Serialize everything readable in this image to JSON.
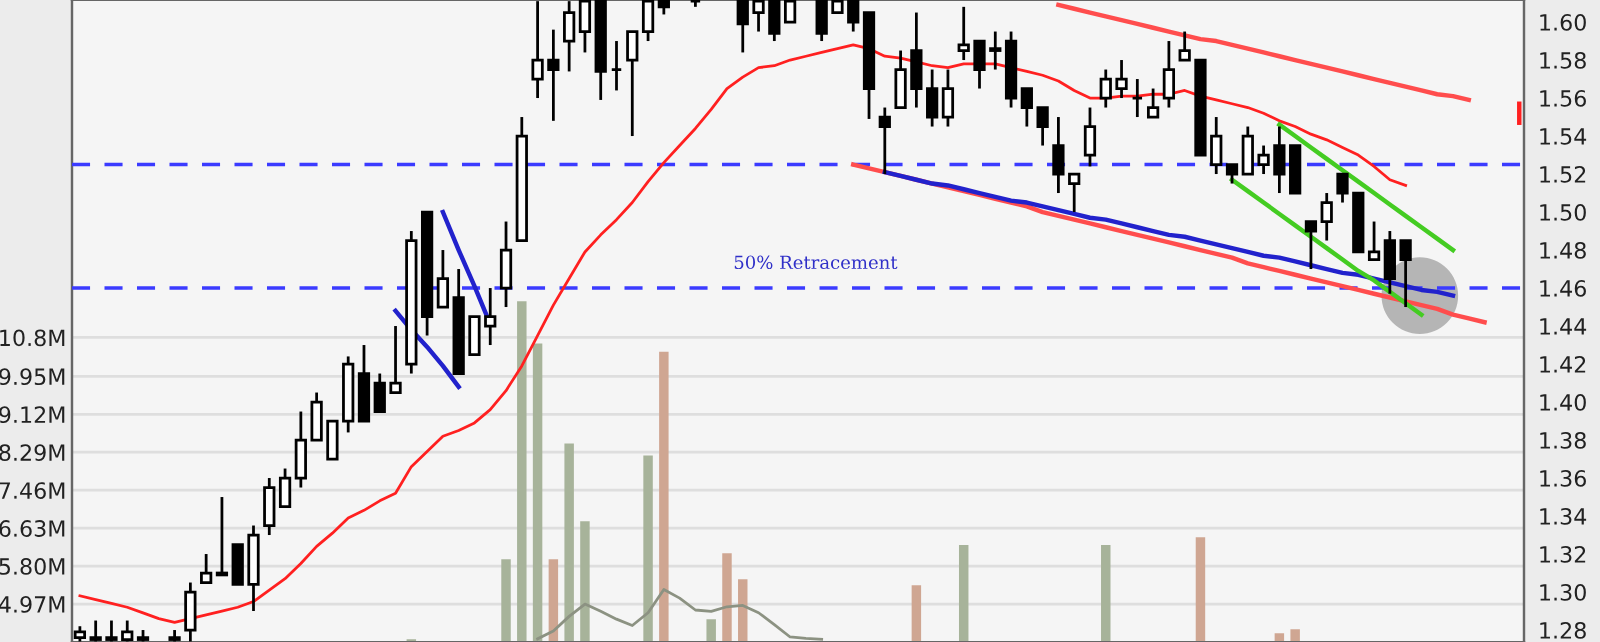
{
  "chart_data": {
    "type": "candlestick",
    "categories": [
      null,
      null,
      null,
      null,
      null,
      null,
      null,
      null,
      null,
      null,
      null,
      null,
      null,
      null,
      null,
      null,
      null,
      null,
      null,
      null,
      null,
      null,
      null,
      null,
      null,
      null,
      null,
      null,
      null,
      null,
      null,
      null,
      null,
      null,
      null,
      null,
      null,
      null,
      null,
      null,
      null,
      null,
      null,
      null,
      null,
      null,
      null,
      null,
      null,
      null,
      null,
      null,
      null,
      null,
      null,
      null,
      null,
      null,
      null,
      null,
      null,
      null,
      null,
      null,
      null,
      null,
      null,
      null,
      null,
      null,
      null,
      null,
      null,
      null,
      null,
      null,
      null,
      null,
      null,
      null,
      null,
      null,
      null,
      null,
      null,
      null,
      null,
      null,
      null,
      null,
      null,
      null
    ],
    "ohlc": [
      [
        1.276,
        1.282,
        1.274,
        1.279
      ],
      [
        1.275,
        1.285,
        1.274,
        1.276
      ],
      [
        1.275,
        1.285,
        1.274,
        1.276
      ],
      [
        1.275,
        1.285,
        1.274,
        1.279
      ],
      [
        1.275,
        1.28,
        1.274,
        1.276
      ],
      null,
      [
        1.275,
        1.28,
        1.274,
        1.276
      ],
      [
        1.28,
        1.305,
        1.274,
        1.3
      ],
      [
        1.305,
        1.32,
        1.305,
        1.31
      ],
      [
        1.309,
        1.35,
        1.309,
        1.31
      ],
      [
        1.325,
        1.325,
        1.304,
        1.304
      ],
      [
        1.304,
        1.335,
        1.29,
        1.33
      ],
      [
        1.335,
        1.36,
        1.33,
        1.355
      ],
      [
        1.345,
        1.365,
        1.345,
        1.36
      ],
      [
        1.36,
        1.395,
        1.355,
        1.38
      ],
      [
        1.38,
        1.405,
        1.38,
        1.4
      ],
      [
        1.37,
        1.39,
        1.37,
        1.39
      ],
      [
        1.39,
        1.424,
        1.384,
        1.42
      ],
      [
        1.415,
        1.43,
        1.39,
        1.39
      ],
      [
        1.41,
        1.415,
        1.395,
        1.395
      ],
      [
        1.405,
        1.44,
        1.405,
        1.41
      ],
      [
        1.42,
        1.49,
        1.415,
        1.485
      ],
      [
        1.5,
        1.5,
        1.435,
        1.445
      ],
      [
        1.45,
        1.48,
        1.45,
        1.465
      ],
      [
        1.455,
        1.47,
        1.415,
        1.415
      ],
      [
        1.425,
        1.445,
        1.425,
        1.445
      ],
      [
        1.44,
        1.46,
        1.43,
        1.445
      ],
      [
        1.46,
        1.495,
        1.45,
        1.48
      ],
      [
        1.485,
        1.55,
        1.485,
        1.54
      ],
      [
        1.57,
        1.611,
        1.56,
        1.58
      ],
      [
        1.58,
        1.596,
        1.548,
        1.575
      ],
      [
        1.59,
        1.611,
        1.574,
        1.605
      ],
      [
        1.595,
        1.611,
        1.584,
        1.611
      ],
      [
        1.611,
        1.611,
        1.559,
        1.574
      ],
      [
        1.575,
        1.59,
        1.564,
        1.575
      ],
      [
        1.58,
        1.595,
        1.54,
        1.595
      ],
      [
        1.595,
        1.611,
        1.59,
        1.611
      ],
      [
        1.611,
        1.611,
        1.604,
        1.608
      ],
      null,
      [
        1.611,
        1.611,
        1.608,
        1.611
      ],
      null,
      null,
      [
        1.611,
        1.611,
        1.584,
        1.599
      ],
      [
        1.605,
        1.611,
        1.595,
        1.611
      ],
      [
        1.611,
        1.611,
        1.59,
        1.594
      ],
      [
        1.6,
        1.611,
        1.6,
        1.611
      ],
      null,
      [
        1.611,
        1.611,
        1.59,
        1.594
      ],
      [
        1.605,
        1.611,
        1.605,
        1.611
      ],
      [
        1.611,
        1.611,
        1.595,
        1.6
      ],
      [
        1.605,
        1.605,
        1.549,
        1.565
      ],
      [
        1.55,
        1.555,
        1.52,
        1.545
      ],
      [
        1.555,
        1.585,
        1.555,
        1.575
      ],
      [
        1.585,
        1.605,
        1.555,
        1.565
      ],
      [
        1.565,
        1.575,
        1.545,
        1.55
      ],
      [
        1.55,
        1.575,
        1.545,
        1.565
      ],
      [
        1.585,
        1.608,
        1.58,
        1.588
      ],
      [
        1.59,
        1.59,
        1.565,
        1.575
      ],
      [
        1.585,
        1.595,
        1.575,
        1.586
      ],
      [
        1.59,
        1.595,
        1.555,
        1.56
      ],
      [
        1.565,
        1.565,
        1.545,
        1.555
      ],
      [
        1.555,
        1.555,
        1.535,
        1.545
      ],
      [
        1.535,
        1.55,
        1.51,
        1.52
      ],
      [
        1.515,
        1.52,
        1.5,
        1.52
      ],
      [
        1.53,
        1.555,
        1.524,
        1.545
      ],
      [
        1.56,
        1.575,
        1.555,
        1.57
      ],
      [
        1.565,
        1.58,
        1.56,
        1.57
      ],
      [
        1.56,
        1.57,
        1.55,
        1.56
      ],
      [
        1.55,
        1.565,
        1.55,
        1.555
      ],
      [
        1.56,
        1.59,
        1.555,
        1.575
      ],
      [
        1.58,
        1.595,
        1.58,
        1.585
      ],
      [
        1.58,
        1.58,
        1.53,
        1.53
      ],
      [
        1.525,
        1.55,
        1.52,
        1.54
      ],
      [
        1.525,
        1.525,
        1.515,
        1.52
      ],
      [
        1.52,
        1.545,
        1.52,
        1.54
      ],
      [
        1.525,
        1.535,
        1.52,
        1.53
      ],
      [
        1.535,
        1.545,
        1.51,
        1.52
      ],
      [
        1.535,
        1.535,
        1.51,
        1.51
      ],
      [
        1.495,
        1.495,
        1.47,
        1.49
      ],
      [
        1.495,
        1.51,
        1.485,
        1.505
      ],
      [
        1.52,
        1.52,
        1.505,
        1.51
      ],
      [
        1.51,
        1.51,
        1.479,
        1.479
      ],
      [
        1.475,
        1.495,
        1.475,
        1.479
      ],
      [
        1.485,
        1.49,
        1.457,
        1.465
      ],
      [
        1.485,
        1.485,
        1.45,
        1.475
      ],
      null,
      null,
      null,
      null,
      null,
      null,
      null
    ],
    "series": [
      {
        "type": "line",
        "color": "#ff2020",
        "values": [
          1.298,
          1.296,
          1.294,
          1.292,
          1.289,
          1.286,
          1.284,
          1.286,
          1.288,
          1.29,
          1.292,
          1.295,
          1.301,
          1.307,
          1.315,
          1.324,
          1.331,
          1.339,
          1.343,
          1.348,
          1.352,
          1.366,
          1.374,
          1.382,
          1.385,
          1.389,
          1.396,
          1.406,
          1.419,
          1.435,
          1.451,
          1.465,
          1.479,
          1.488,
          1.496,
          1.505,
          1.516,
          1.526,
          1.535,
          1.544,
          1.554,
          1.565,
          1.571,
          1.576,
          1.577,
          1.58,
          1.582,
          1.584,
          1.586,
          1.588,
          1.586,
          1.582,
          1.581,
          1.579,
          1.577,
          1.576,
          1.578,
          1.578,
          1.578,
          1.576,
          1.574,
          1.572,
          1.569,
          1.564,
          1.56,
          1.56,
          1.561,
          1.561,
          1.562,
          1.562,
          1.564,
          1.561,
          1.559,
          1.557,
          1.555,
          1.552,
          1.548,
          1.545,
          1.541,
          1.538,
          1.534,
          1.53,
          1.524,
          1.517,
          1.514,
          null,
          null,
          null,
          null,
          null,
          null,
          null
        ]
      },
      {
        "type": "bar",
        "axis": "y2",
        "values": [
          null,
          null,
          null,
          null,
          null,
          null,
          null,
          null,
          null,
          null,
          null,
          null,
          null,
          null,
          null,
          null,
          null,
          null,
          null,
          null,
          null,
          4.2,
          null,
          null,
          null,
          null,
          null,
          5.95,
          11.59,
          10.67,
          5.95,
          8.48,
          6.78,
          null,
          null,
          null,
          8.22,
          10.49,
          null,
          null,
          4.64,
          6.08,
          5.51,
          null,
          null,
          null,
          null,
          null,
          null,
          null,
          null,
          null,
          null,
          5.38,
          null,
          null,
          6.26,
          null,
          null,
          null,
          null,
          null,
          null,
          null,
          null,
          6.26,
          null,
          null,
          null,
          null,
          null,
          6.43,
          null,
          null,
          null,
          null,
          4.33,
          4.42,
          null,
          null,
          null,
          null,
          null,
          null,
          null,
          null,
          null,
          null,
          null,
          null,
          null,
          null
        ],
        "colors": [
          null,
          null,
          null,
          null,
          null,
          null,
          null,
          null,
          null,
          null,
          null,
          null,
          null,
          null,
          null,
          null,
          null,
          null,
          null,
          null,
          null,
          "#a7b39a",
          null,
          null,
          null,
          null,
          null,
          "#a7b39a",
          "#a7b39a",
          "#a7b39a",
          "#cfa692",
          "#a7b39a",
          "#a7b39a",
          null,
          null,
          null,
          "#a7b39a",
          "#cfa692",
          null,
          null,
          "#a7b39a",
          "#cfa692",
          "#cfa692",
          null,
          null,
          null,
          null,
          null,
          null,
          null,
          null,
          null,
          null,
          "#cfa692",
          null,
          null,
          "#a7b39a",
          null,
          null,
          null,
          null,
          null,
          null,
          null,
          null,
          "#a7b39a",
          null,
          null,
          null,
          null,
          null,
          "#cfa692",
          null,
          null,
          null,
          null,
          "#cfa692",
          "#cfa692",
          null,
          null,
          null,
          null,
          null,
          null,
          null,
          null,
          null,
          null,
          null,
          null,
          null,
          null
        ]
      },
      {
        "type": "line",
        "axis": "y2",
        "color": "#8c9282",
        "values": [
          null,
          null,
          null,
          null,
          null,
          null,
          null,
          null,
          null,
          null,
          null,
          null,
          null,
          null,
          null,
          null,
          null,
          null,
          null,
          null,
          null,
          null,
          null,
          null,
          null,
          null,
          null,
          null,
          null,
          4.21,
          4.38,
          4.7,
          4.97,
          4.81,
          4.64,
          4.5,
          4.78,
          5.29,
          5.1,
          4.84,
          4.81,
          4.91,
          4.94,
          4.78,
          4.52,
          4.25,
          4.22,
          4.2,
          null,
          null,
          null,
          null,
          null,
          null,
          null,
          null,
          null,
          null,
          null,
          null,
          null,
          null,
          null,
          null,
          null,
          null,
          null,
          null,
          null,
          null,
          null,
          null,
          null,
          null,
          null,
          null,
          null,
          null,
          null,
          null,
          null,
          null,
          null,
          null,
          null,
          null,
          null,
          null,
          null,
          null,
          null,
          null
        ]
      },
      {
        "type": "line",
        "color": "#ff4d4d",
        "values": [
          null,
          null,
          null,
          null,
          null,
          null,
          null,
          null,
          null,
          null,
          null,
          null,
          null,
          null,
          null,
          null,
          null,
          null,
          null,
          null,
          null,
          null,
          null,
          null,
          null,
          null,
          null,
          null,
          null,
          null,
          null,
          null,
          null,
          null,
          null,
          null,
          null,
          null,
          null,
          null,
          null,
          null,
          null,
          null,
          null,
          null,
          null,
          null,
          null,
          null,
          null,
          null,
          null,
          null,
          null,
          null,
          null,
          null,
          null,
          null,
          null,
          null,
          1.609,
          1.607,
          1.605,
          1.603,
          1.601,
          1.599,
          1.597,
          1.595,
          1.593,
          1.591,
          1.59,
          1.588,
          1.586,
          1.584,
          1.582,
          1.58,
          1.578,
          1.576,
          1.574,
          1.572,
          1.57,
          1.568,
          1.566,
          1.564,
          1.562,
          1.561,
          1.559,
          null,
          null,
          null
        ]
      },
      {
        "type": "line",
        "color": "#ff4d4d",
        "values": [
          null,
          null,
          null,
          null,
          null,
          null,
          null,
          null,
          null,
          null,
          null,
          null,
          null,
          null,
          null,
          null,
          null,
          null,
          null,
          null,
          null,
          null,
          null,
          null,
          null,
          null,
          null,
          null,
          null,
          null,
          null,
          null,
          null,
          null,
          null,
          null,
          null,
          null,
          null,
          null,
          null,
          null,
          null,
          null,
          null,
          null,
          null,
          null,
          null,
          1.525,
          1.523,
          1.521,
          1.519,
          1.517,
          1.515,
          1.513,
          1.511,
          1.509,
          1.507,
          1.505,
          1.503,
          1.5,
          1.498,
          1.496,
          1.494,
          1.492,
          1.49,
          1.488,
          1.486,
          1.484,
          1.482,
          1.48,
          1.478,
          1.476,
          1.473,
          1.471,
          1.469,
          1.467,
          1.465,
          1.463,
          1.461,
          1.459,
          1.457,
          1.455,
          1.453,
          1.451,
          1.449,
          1.446,
          1.444,
          1.442,
          null,
          null
        ]
      },
      {
        "type": "line",
        "color": "#2222cc",
        "values": [
          null,
          null,
          null,
          null,
          null,
          null,
          null,
          null,
          null,
          null,
          null,
          null,
          null,
          null,
          null,
          null,
          null,
          null,
          null,
          null,
          null,
          null,
          null,
          null,
          null,
          null,
          null,
          null,
          null,
          null,
          null,
          null,
          null,
          null,
          null,
          null,
          null,
          null,
          null,
          null,
          null,
          null,
          null,
          null,
          null,
          null,
          null,
          null,
          null,
          null,
          null,
          1.521,
          1.519,
          1.517,
          1.515,
          1.514,
          1.512,
          1.51,
          1.508,
          1.506,
          1.505,
          1.503,
          1.501,
          1.499,
          1.497,
          1.496,
          1.494,
          1.492,
          1.49,
          1.488,
          1.487,
          1.485,
          1.483,
          1.481,
          1.479,
          1.477,
          1.476,
          1.474,
          1.472,
          1.47,
          1.468,
          1.467,
          1.465,
          1.463,
          1.461,
          1.459,
          1.458,
          1.456,
          null,
          null,
          null,
          null
        ]
      },
      {
        "type": "line",
        "color": "#44cc22",
        "values": [
          null,
          null,
          null,
          null,
          null,
          null,
          null,
          null,
          null,
          null,
          null,
          null,
          null,
          null,
          null,
          null,
          null,
          null,
          null,
          null,
          null,
          null,
          null,
          null,
          null,
          null,
          null,
          null,
          null,
          null,
          null,
          null,
          null,
          null,
          null,
          null,
          null,
          null,
          null,
          null,
          null,
          null,
          null,
          null,
          null,
          null,
          null,
          null,
          null,
          null,
          null,
          null,
          null,
          null,
          null,
          null,
          null,
          null,
          null,
          null,
          null,
          null,
          null,
          null,
          null,
          null,
          null,
          null,
          null,
          null,
          null,
          null,
          null,
          null,
          null,
          null,
          1.546,
          1.54,
          1.534,
          1.528,
          1.522,
          1.516,
          1.51,
          1.504,
          1.498,
          1.492,
          1.486,
          1.48,
          null,
          null,
          null,
          null
        ]
      },
      {
        "type": "line",
        "color": "#44cc22",
        "values": [
          null,
          null,
          null,
          null,
          null,
          null,
          null,
          null,
          null,
          null,
          null,
          null,
          null,
          null,
          null,
          null,
          null,
          null,
          null,
          null,
          null,
          null,
          null,
          null,
          null,
          null,
          null,
          null,
          null,
          null,
          null,
          null,
          null,
          null,
          null,
          null,
          null,
          null,
          null,
          null,
          null,
          null,
          null,
          null,
          null,
          null,
          null,
          null,
          null,
          null,
          null,
          null,
          null,
          null,
          null,
          null,
          null,
          null,
          null,
          null,
          null,
          null,
          null,
          null,
          null,
          null,
          null,
          null,
          null,
          null,
          null,
          null,
          null,
          1.517,
          1.511,
          1.505,
          1.499,
          1.493,
          1.487,
          1.481,
          1.475,
          1.469,
          1.464,
          1.458,
          1.452,
          1.446,
          null,
          null,
          null,
          null,
          null,
          null
        ]
      },
      {
        "type": "line",
        "color": "#2222cc",
        "values": [
          null,
          null,
          null,
          null,
          null,
          null,
          null,
          null,
          null,
          null,
          null,
          null,
          null,
          null,
          null,
          null,
          null,
          null,
          null,
          null,
          null,
          null,
          null,
          1.5,
          1.48,
          1.461,
          1.441,
          null,
          null,
          null,
          null,
          null,
          null,
          null,
          null,
          null,
          null,
          null,
          null,
          null,
          null,
          null,
          null,
          null,
          null,
          null,
          null,
          null,
          null,
          null,
          null,
          null,
          null,
          null,
          null,
          null,
          null,
          null,
          null,
          null,
          null,
          null,
          null,
          null,
          null,
          null,
          null,
          null,
          null,
          null,
          null,
          null,
          null,
          null,
          null,
          null,
          null,
          null,
          null,
          null,
          null,
          null,
          null,
          null,
          null,
          null,
          null,
          null,
          null,
          null,
          null,
          null
        ]
      },
      {
        "type": "line",
        "color": "#2222cc",
        "values": [
          null,
          null,
          null,
          null,
          null,
          null,
          null,
          null,
          null,
          null,
          null,
          null,
          null,
          null,
          null,
          null,
          null,
          null,
          null,
          null,
          1.448,
          1.438,
          1.429,
          1.419,
          1.408,
          null,
          null,
          null,
          null,
          null,
          null,
          null,
          null,
          null,
          null,
          null,
          null,
          null,
          null,
          null,
          null,
          null,
          null,
          null,
          null,
          null,
          null,
          null,
          null,
          null,
          null,
          null,
          null,
          null,
          null,
          null,
          null,
          null,
          null,
          null,
          null,
          null,
          null,
          null,
          null,
          null,
          null,
          null,
          null,
          null,
          null,
          null,
          null,
          null,
          null,
          null,
          null,
          null,
          null,
          null,
          null,
          null,
          null,
          null,
          null,
          null,
          null,
          null,
          null,
          null,
          null,
          null
        ]
      }
    ],
    "ylim": [
      1.2737,
      1.6116
    ],
    "yticks": [
      1.28,
      {
        "value": 1.3,
        "label": "1.30"
      },
      1.32,
      1.34,
      1.36,
      1.38,
      {
        "value": 1.4,
        "label": "1.40"
      },
      1.42,
      1.44,
      1.46,
      1.48,
      {
        "value": 1.5,
        "label": "1.50"
      },
      1.52,
      1.54,
      1.56,
      1.58,
      {
        "value": 1.6,
        "label": "1.60"
      }
    ],
    "y2lim": [
      4.14,
      18.18
    ],
    "y2ticks": [
      {
        "value": 4.97,
        "label": "4.97M"
      },
      {
        "value": 5.8,
        "label": "5.80M"
      },
      {
        "value": 6.63,
        "label": "6.63M"
      },
      {
        "value": 7.46,
        "label": "7.46M"
      },
      {
        "value": 8.29,
        "label": "8.29M"
      },
      {
        "value": 9.12,
        "label": "9.12M"
      },
      {
        "value": 9.95,
        "label": "9.95M"
      },
      {
        "value": 10.8,
        "label": "10.8M"
      }
    ],
    "ref_lines": [
      {
        "axis": "y",
        "value": 1.525,
        "color": "#3b3bff",
        "line_style": "dashed"
      },
      {
        "axis": "y",
        "value": 1.46,
        "color": "#3b3bff",
        "line_style": "dashed"
      }
    ],
    "annotations": [
      "50% Retracement"
    ],
    "tick_labels": "y",
    "grid": true
  }
}
